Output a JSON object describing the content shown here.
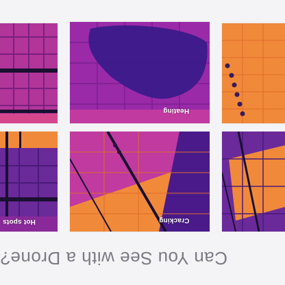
{
  "gallery": {
    "tiles": [
      {
        "label": "",
        "icon": "thermal-image"
      },
      {
        "label": "Heating",
        "icon": "thermal-image"
      },
      {
        "label": "",
        "icon": "thermal-image"
      },
      {
        "label": "Hot spots",
        "icon": "thermal-image"
      },
      {
        "label": "Cracking",
        "icon": "thermal-image"
      },
      {
        "label": "",
        "icon": "thermal-image"
      }
    ],
    "caption": "Can You See with a Drone?"
  },
  "colors": {
    "background": "#f4f4f6",
    "thermal_orange": "#f08a3a",
    "thermal_purple": "#7a2a9a",
    "thermal_deep": "#3b1a8a",
    "thermal_magenta": "#c03aa0",
    "caption_text": "#7a7a84"
  }
}
